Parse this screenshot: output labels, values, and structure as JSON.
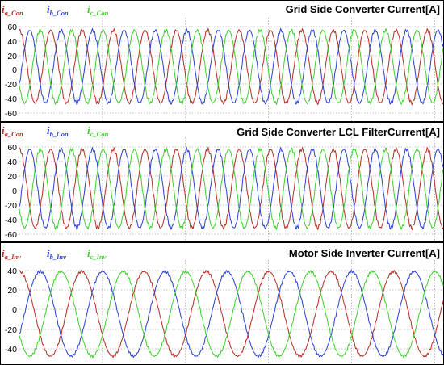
{
  "chart_data": [
    {
      "type": "line",
      "title": "Grid Side Converter Current[A]",
      "ylabel": "",
      "xlabel": "",
      "ylim": [
        -78,
        70
      ],
      "yticks": [
        60,
        40,
        20,
        0,
        -20,
        -40,
        -60
      ],
      "ytick_labels": [
        "60",
        "40",
        "20",
        "0",
        "-20",
        "-40",
        "-60"
      ],
      "grid": true,
      "waveform": {
        "amplitude": 52,
        "cycles": 13.5,
        "ripple": 2.5
      },
      "series": [
        {
          "name_main": "i",
          "name_sub": "a_Con",
          "color": "#b32d23",
          "phase_deg": 0
        },
        {
          "name_main": "i",
          "name_sub": "b_Con",
          "color": "#2a3fcf",
          "phase_deg": -120
        },
        {
          "name_main": "i",
          "name_sub": "c_Con",
          "color": "#3ecf2e",
          "phase_deg": 120
        }
      ]
    },
    {
      "type": "line",
      "title": "Grid Side Converter LCL FilterCurrent[A]",
      "ylabel": "",
      "xlabel": "",
      "ylim": [
        -70,
        68
      ],
      "yticks": [
        60,
        40,
        20,
        0,
        -20,
        -40,
        -60
      ],
      "ytick_labels": [
        "60",
        "40",
        "20",
        "0",
        "-20",
        "-40",
        "-60"
      ],
      "grid": true,
      "waveform": {
        "amplitude": 52,
        "cycles": 13.5,
        "ripple": 2.5
      },
      "series": [
        {
          "name_main": "i",
          "name_sub": "a_Con",
          "color": "#b32d23",
          "phase_deg": 0
        },
        {
          "name_main": "i",
          "name_sub": "b_Con",
          "color": "#2a3fcf",
          "phase_deg": -120
        },
        {
          "name_main": "i",
          "name_sub": "c_Con",
          "color": "#3ecf2e",
          "phase_deg": 120
        }
      ]
    },
    {
      "type": "line",
      "title": "Motor Side Inverter Current[A]",
      "ylabel": "",
      "xlabel": "",
      "ylim": [
        -44,
        47
      ],
      "yticks": [
        40,
        20,
        0,
        -20,
        -40
      ],
      "ytick_labels": [
        "40",
        "20",
        "0",
        "-20",
        "-40"
      ],
      "grid": true,
      "waveform": {
        "amplitude": 37,
        "cycles": 6.8,
        "ripple": 1.2
      },
      "series": [
        {
          "name_main": "i",
          "name_sub": "a_Inv",
          "color": "#b32d23",
          "phase_deg": 0
        },
        {
          "name_main": "i",
          "name_sub": "b_Inv",
          "color": "#2a3fcf",
          "phase_deg": -120
        },
        {
          "name_main": "i",
          "name_sub": "c_Inv",
          "color": "#3ecf2e",
          "phase_deg": 120
        }
      ]
    }
  ]
}
